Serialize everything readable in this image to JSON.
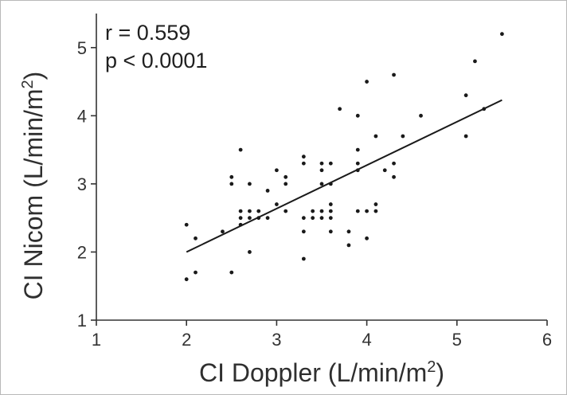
{
  "chart_data": {
    "type": "scatter",
    "title": "",
    "xlabel": "CI Doppler (L/min/m",
    "xlabel_sup": "2",
    "xlabel_end": ")",
    "ylabel": "CI Nicom (L/min/m",
    "ylabel_sup": "2",
    "ylabel_end": ")",
    "xlim": [
      1,
      6
    ],
    "ylim": [
      1,
      5.5
    ],
    "xticks": [
      1,
      2,
      3,
      4,
      5,
      6
    ],
    "yticks": [
      1,
      2,
      3,
      4,
      5
    ],
    "grid": false,
    "annotations": [
      "r = 0.559",
      "p < 0.0001"
    ],
    "points": [
      {
        "x": 2.0,
        "y": 1.6
      },
      {
        "x": 2.1,
        "y": 1.7
      },
      {
        "x": 2.0,
        "y": 2.4
      },
      {
        "x": 2.1,
        "y": 2.2
      },
      {
        "x": 2.4,
        "y": 2.3
      },
      {
        "x": 2.5,
        "y": 1.7
      },
      {
        "x": 2.5,
        "y": 3.0
      },
      {
        "x": 2.5,
        "y": 3.1
      },
      {
        "x": 2.6,
        "y": 2.4
      },
      {
        "x": 2.6,
        "y": 2.5
      },
      {
        "x": 2.6,
        "y": 2.6
      },
      {
        "x": 2.6,
        "y": 3.5
      },
      {
        "x": 2.7,
        "y": 2.0
      },
      {
        "x": 2.7,
        "y": 2.5
      },
      {
        "x": 2.7,
        "y": 2.6
      },
      {
        "x": 2.7,
        "y": 3.0
      },
      {
        "x": 2.8,
        "y": 2.5
      },
      {
        "x": 2.8,
        "y": 2.6
      },
      {
        "x": 2.9,
        "y": 2.5
      },
      {
        "x": 2.9,
        "y": 2.9
      },
      {
        "x": 3.0,
        "y": 2.7
      },
      {
        "x": 3.0,
        "y": 3.2
      },
      {
        "x": 3.1,
        "y": 2.6
      },
      {
        "x": 3.1,
        "y": 3.0
      },
      {
        "x": 3.1,
        "y": 3.1
      },
      {
        "x": 3.3,
        "y": 1.9
      },
      {
        "x": 3.3,
        "y": 2.3
      },
      {
        "x": 3.3,
        "y": 2.5
      },
      {
        "x": 3.3,
        "y": 3.3
      },
      {
        "x": 3.3,
        "y": 3.4
      },
      {
        "x": 3.4,
        "y": 2.5
      },
      {
        "x": 3.4,
        "y": 2.6
      },
      {
        "x": 3.5,
        "y": 2.5
      },
      {
        "x": 3.5,
        "y": 2.6
      },
      {
        "x": 3.5,
        "y": 3.0
      },
      {
        "x": 3.5,
        "y": 3.2
      },
      {
        "x": 3.5,
        "y": 3.3
      },
      {
        "x": 3.6,
        "y": 2.3
      },
      {
        "x": 3.6,
        "y": 2.5
      },
      {
        "x": 3.6,
        "y": 2.6
      },
      {
        "x": 3.6,
        "y": 2.7
      },
      {
        "x": 3.6,
        "y": 3.0
      },
      {
        "x": 3.6,
        "y": 3.3
      },
      {
        "x": 3.7,
        "y": 4.1
      },
      {
        "x": 3.8,
        "y": 2.1
      },
      {
        "x": 3.8,
        "y": 2.3
      },
      {
        "x": 3.9,
        "y": 2.6
      },
      {
        "x": 3.9,
        "y": 3.2
      },
      {
        "x": 3.9,
        "y": 3.3
      },
      {
        "x": 3.9,
        "y": 3.5
      },
      {
        "x": 3.9,
        "y": 4.0
      },
      {
        "x": 4.0,
        "y": 2.2
      },
      {
        "x": 4.0,
        "y": 2.6
      },
      {
        "x": 4.0,
        "y": 4.5
      },
      {
        "x": 4.1,
        "y": 2.6
      },
      {
        "x": 4.1,
        "y": 2.7
      },
      {
        "x": 4.1,
        "y": 3.7
      },
      {
        "x": 4.2,
        "y": 3.2
      },
      {
        "x": 4.3,
        "y": 3.1
      },
      {
        "x": 4.3,
        "y": 3.3
      },
      {
        "x": 4.3,
        "y": 4.6
      },
      {
        "x": 4.4,
        "y": 3.7
      },
      {
        "x": 4.6,
        "y": 4.0
      },
      {
        "x": 5.1,
        "y": 3.7
      },
      {
        "x": 5.1,
        "y": 4.3
      },
      {
        "x": 5.2,
        "y": 4.8
      },
      {
        "x": 5.3,
        "y": 4.1
      },
      {
        "x": 5.5,
        "y": 5.2
      }
    ],
    "regression_line": {
      "x": [
        2.0,
        5.5
      ],
      "y": [
        2.0,
        4.23
      ]
    },
    "colors": {
      "points": "#1a1a1a",
      "line": "#1a1a1a",
      "axes": "#333333"
    }
  }
}
